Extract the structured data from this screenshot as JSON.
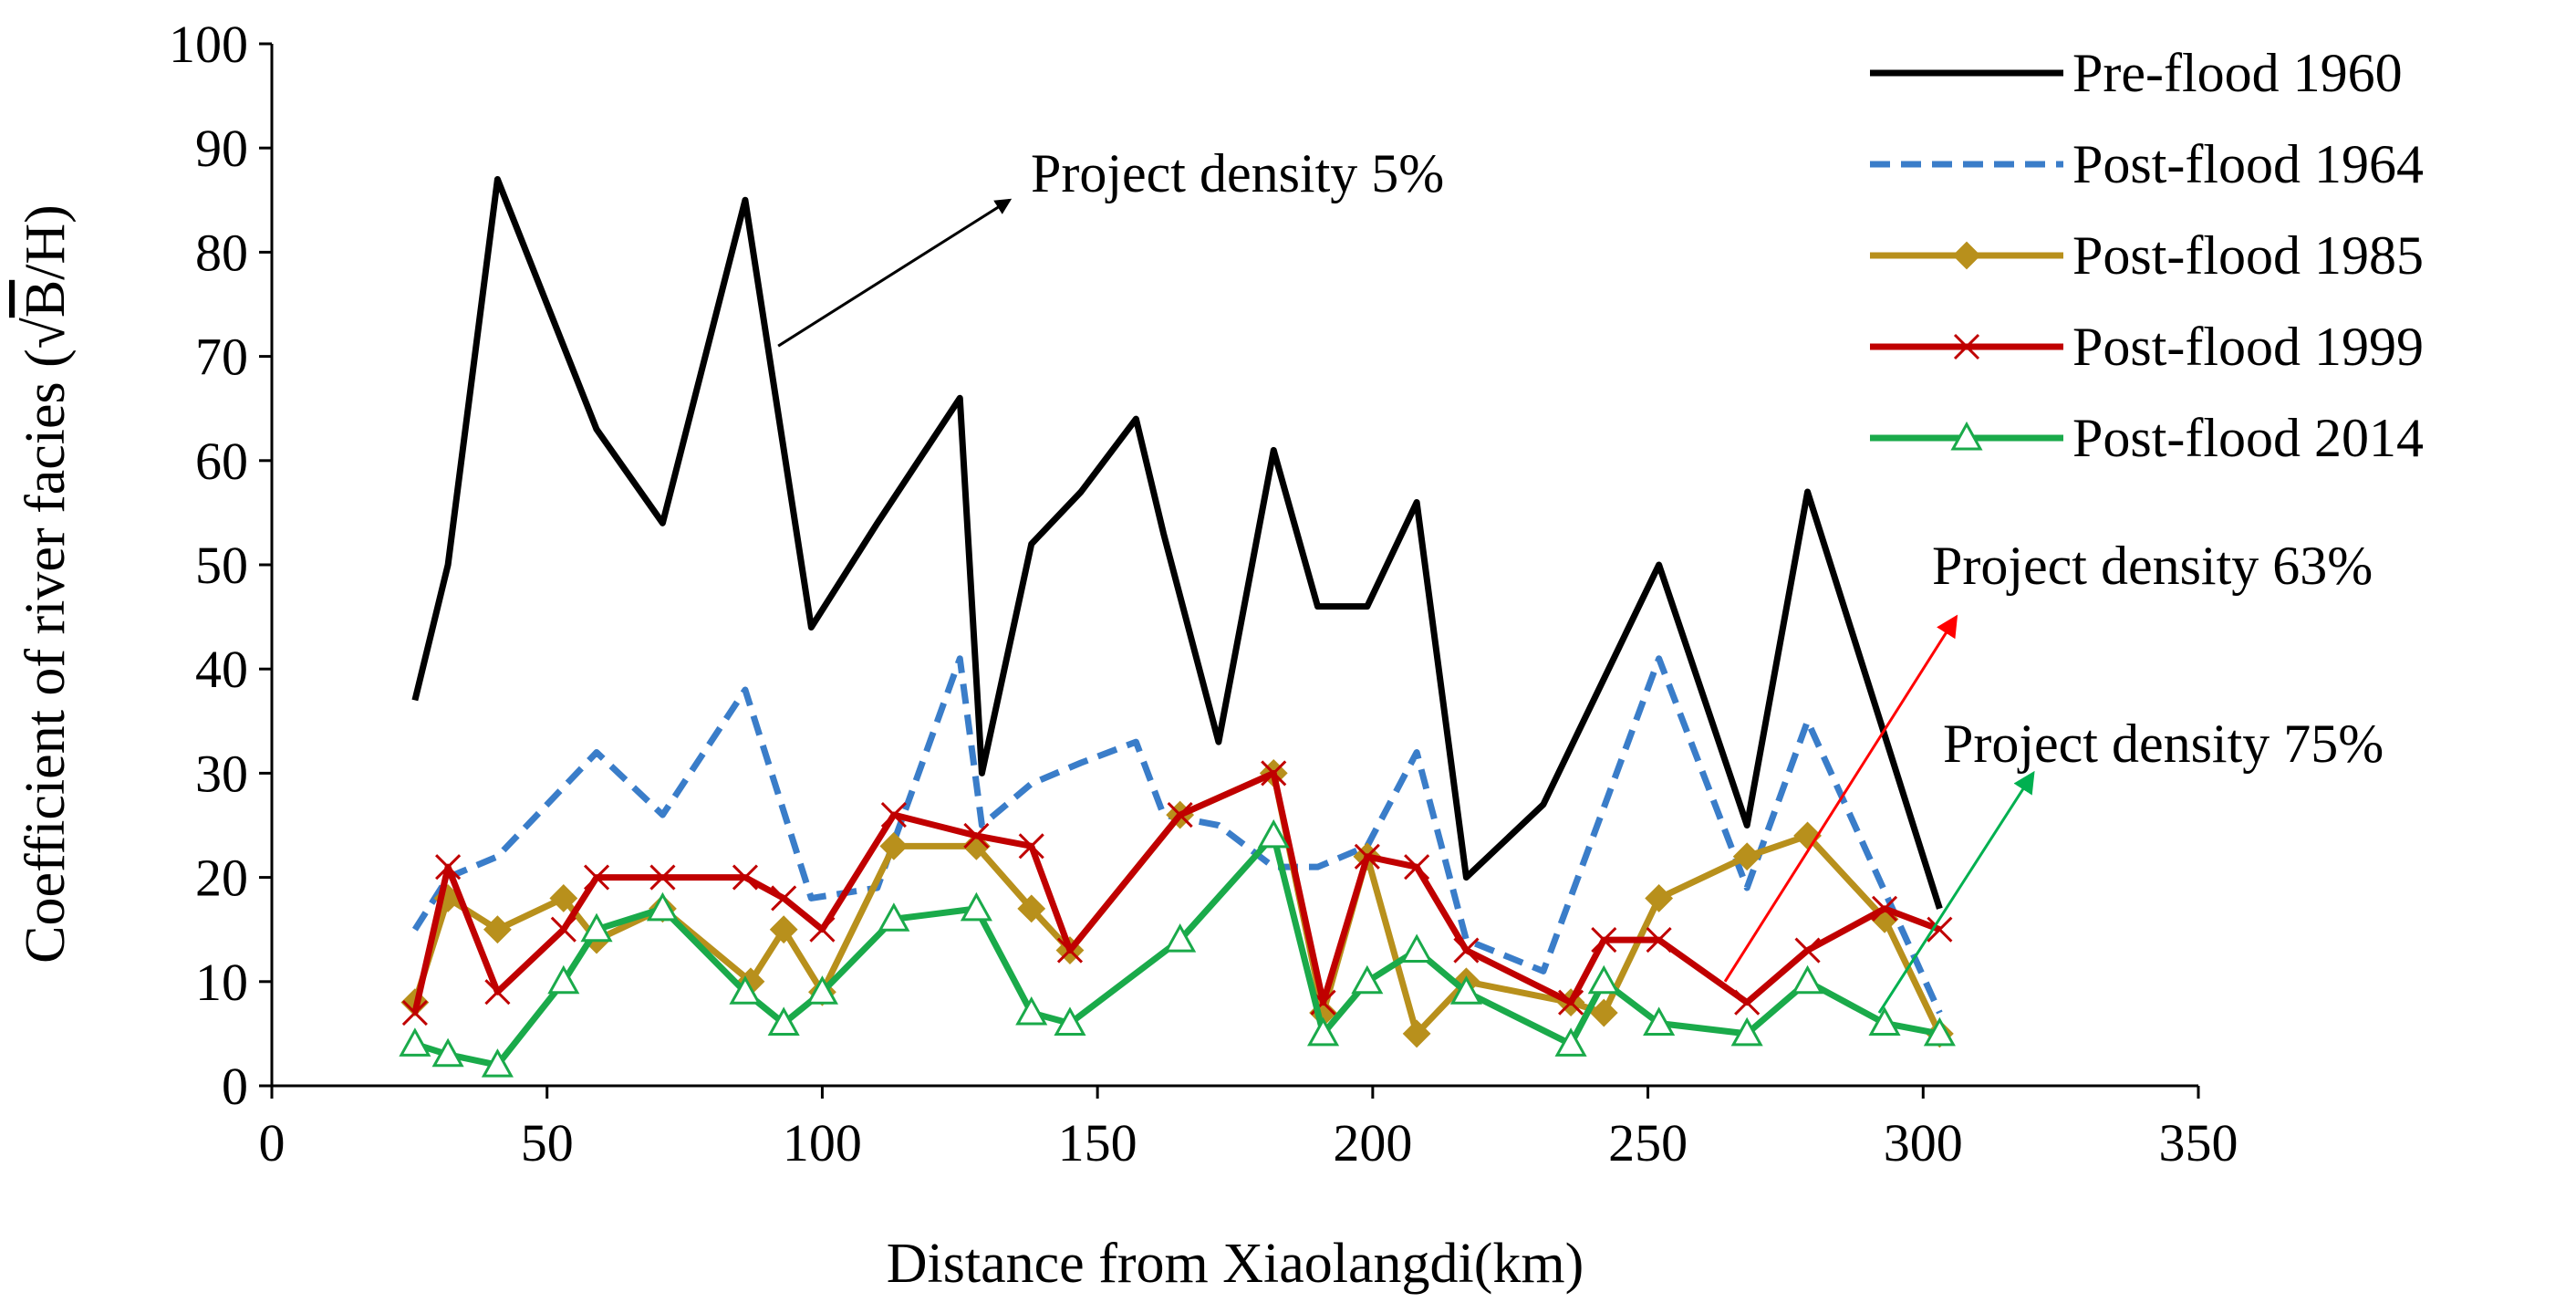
{
  "chart_data": {
    "type": "line",
    "xlabel": "Distance from Xiaolangdi(km)",
    "ylabel_prefix": "Coefficient of river facies (",
    "ylabel_radical": "√",
    "ylabel_radicand": "B",
    "ylabel_suffix": "/H)",
    "xlim": [
      0,
      350
    ],
    "ylim": [
      0,
      100
    ],
    "xticks": [
      "0",
      "50",
      "100",
      "150",
      "200",
      "250",
      "300",
      "350"
    ],
    "yticks": [
      "0",
      "10",
      "20",
      "30",
      "40",
      "50",
      "60",
      "70",
      "80",
      "90",
      "100"
    ],
    "grid": false,
    "legend_position": "top-right",
    "series": [
      {
        "name": "Pre-flood 1960",
        "color": "#000000",
        "style": "solid",
        "marker": "none",
        "points": [
          [
            26,
            37
          ],
          [
            32,
            50
          ],
          [
            41,
            87
          ],
          [
            50,
            75
          ],
          [
            59,
            63
          ],
          [
            71,
            54
          ],
          [
            86,
            85
          ],
          [
            98,
            44
          ],
          [
            110,
            54
          ],
          [
            125,
            66
          ],
          [
            129,
            30
          ],
          [
            138,
            52
          ],
          [
            147,
            57
          ],
          [
            157,
            64
          ],
          [
            162,
            53
          ],
          [
            172,
            33
          ],
          [
            182,
            61
          ],
          [
            190,
            46
          ],
          [
            199,
            46
          ],
          [
            208,
            56
          ],
          [
            217,
            20
          ],
          [
            231,
            27
          ],
          [
            252,
            50
          ],
          [
            268,
            25
          ],
          [
            279,
            57
          ],
          [
            303,
            17
          ]
        ]
      },
      {
        "name": "Post-flood 1964",
        "color": "#3a7dc9",
        "style": "dashed",
        "marker": "none",
        "points": [
          [
            26,
            15
          ],
          [
            32,
            20
          ],
          [
            41,
            22
          ],
          [
            50,
            27
          ],
          [
            59,
            32
          ],
          [
            71,
            26
          ],
          [
            86,
            38
          ],
          [
            98,
            18
          ],
          [
            110,
            19
          ],
          [
            125,
            41
          ],
          [
            129,
            25
          ],
          [
            138,
            29
          ],
          [
            147,
            31
          ],
          [
            157,
            33
          ],
          [
            162,
            26
          ],
          [
            172,
            25
          ],
          [
            182,
            21
          ],
          [
            190,
            21
          ],
          [
            199,
            23
          ],
          [
            208,
            32
          ],
          [
            217,
            14
          ],
          [
            231,
            11
          ],
          [
            252,
            41
          ],
          [
            268,
            19
          ],
          [
            279,
            35
          ],
          [
            303,
            7
          ]
        ]
      },
      {
        "name": "Post-flood 1985",
        "color": "#b8901c",
        "style": "solid",
        "marker": "diamond",
        "points": [
          [
            26,
            8
          ],
          [
            32,
            18
          ],
          [
            41,
            15
          ],
          [
            53,
            18
          ],
          [
            59,
            14
          ],
          [
            71,
            17
          ],
          [
            87,
            10
          ],
          [
            93,
            15
          ],
          [
            100,
            9
          ],
          [
            113,
            23
          ],
          [
            128,
            23
          ],
          [
            138,
            17
          ],
          [
            145,
            13
          ],
          [
            165,
            26
          ],
          [
            182,
            30
          ],
          [
            191,
            7
          ],
          [
            199,
            22
          ],
          [
            208,
            5
          ],
          [
            217,
            10
          ],
          [
            236,
            8
          ],
          [
            242,
            7
          ],
          [
            252,
            18
          ],
          [
            268,
            22
          ],
          [
            279,
            24
          ],
          [
            293,
            16
          ],
          [
            303,
            5
          ]
        ]
      },
      {
        "name": "Post-flood 1999",
        "color": "#c00000",
        "style": "solid",
        "marker": "x",
        "points": [
          [
            26,
            7
          ],
          [
            32,
            21
          ],
          [
            41,
            9
          ],
          [
            53,
            15
          ],
          [
            59,
            20
          ],
          [
            71,
            20
          ],
          [
            86,
            20
          ],
          [
            93,
            18
          ],
          [
            100,
            15
          ],
          [
            113,
            26
          ],
          [
            128,
            24
          ],
          [
            138,
            23
          ],
          [
            145,
            13
          ],
          [
            165,
            26
          ],
          [
            182,
            30
          ],
          [
            191,
            8
          ],
          [
            199,
            22
          ],
          [
            208,
            21
          ],
          [
            217,
            13
          ],
          [
            236,
            8
          ],
          [
            242,
            14
          ],
          [
            252,
            14
          ],
          [
            268,
            8
          ],
          [
            279,
            13
          ],
          [
            293,
            17
          ],
          [
            303,
            15
          ]
        ]
      },
      {
        "name": "Post-flood 2014",
        "color": "#1aaa4a",
        "style": "solid",
        "marker": "triangle",
        "points": [
          [
            26,
            4
          ],
          [
            32,
            3
          ],
          [
            41,
            2
          ],
          [
            53,
            10
          ],
          [
            59,
            15
          ],
          [
            71,
            17
          ],
          [
            86,
            9
          ],
          [
            93,
            6
          ],
          [
            100,
            9
          ],
          [
            113,
            16
          ],
          [
            128,
            17
          ],
          [
            138,
            7
          ],
          [
            145,
            6
          ],
          [
            165,
            14
          ],
          [
            182,
            24
          ],
          [
            191,
            5
          ],
          [
            199,
            10
          ],
          [
            208,
            13
          ],
          [
            217,
            9
          ],
          [
            236,
            4
          ],
          [
            242,
            10
          ],
          [
            252,
            6
          ],
          [
            268,
            5
          ],
          [
            279,
            10
          ],
          [
            293,
            6
          ],
          [
            303,
            5
          ]
        ]
      }
    ],
    "annotations": [
      {
        "text": "Project density 5%",
        "color": "#000000",
        "from": [
          92,
          71
        ],
        "to": [
          134,
          85
        ]
      },
      {
        "text": "Project density 63%",
        "color": "#ff0000",
        "from": [
          264,
          10
        ],
        "to": [
          306,
          45
        ]
      },
      {
        "text": "Project density 75%",
        "color": "#00b050",
        "from": [
          292,
          7
        ],
        "to": [
          320,
          30
        ]
      }
    ]
  }
}
